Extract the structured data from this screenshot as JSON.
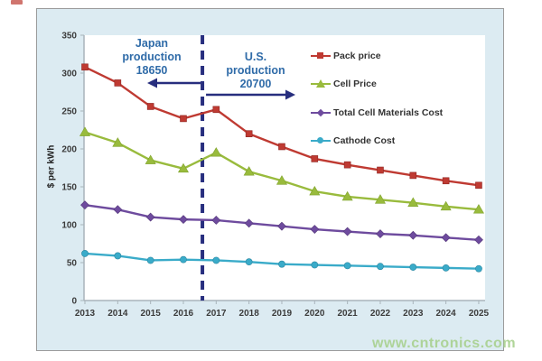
{
  "watermark": {
    "text": "www.cntronics.com"
  },
  "chart_data": {
    "type": "line",
    "title": "",
    "ylabel": "$ per kWh",
    "xlabel": "",
    "categories": [
      "2013",
      "2014",
      "2015",
      "2016",
      "2017",
      "2018",
      "2019",
      "2020",
      "2021",
      "2022",
      "2023",
      "2024",
      "2025"
    ],
    "ylim": [
      0,
      350
    ],
    "yticks": [
      0,
      50,
      100,
      150,
      200,
      250,
      300,
      350
    ],
    "grid": false,
    "legend_position": "upper-right",
    "series": [
      {
        "name": "Pack price",
        "color": "#bf3a32",
        "marker": "square",
        "values": [
          308,
          287,
          256,
          240,
          252,
          220,
          203,
          187,
          179,
          172,
          165,
          158,
          152
        ]
      },
      {
        "name": "Cell Price",
        "color": "#99bb3d",
        "marker": "triangle",
        "values": [
          222,
          208,
          185,
          174,
          195,
          170,
          158,
          144,
          137,
          133,
          129,
          124,
          120
        ]
      },
      {
        "name": "Total Cell Materials Cost",
        "color": "#6e4b9e",
        "marker": "diamond",
        "values": [
          126,
          120,
          110,
          107,
          106,
          102,
          98,
          94,
          91,
          88,
          86,
          83,
          80
        ]
      },
      {
        "name": "Cathode Cost",
        "color": "#3aabc9",
        "marker": "circle",
        "values": [
          62,
          59,
          53,
          54,
          53,
          51,
          48,
          47,
          46,
          45,
          44,
          43,
          42
        ]
      }
    ],
    "annotations": {
      "divider_between": [
        "2016",
        "2017"
      ],
      "divider_x_index": 3.58,
      "divider_color": "#272e7e",
      "left": {
        "lines": [
          "Japan",
          "production",
          "18650"
        ],
        "arrow": "left"
      },
      "right": {
        "lines": [
          "U.S.",
          "production",
          "20700"
        ],
        "arrow": "right"
      }
    }
  }
}
